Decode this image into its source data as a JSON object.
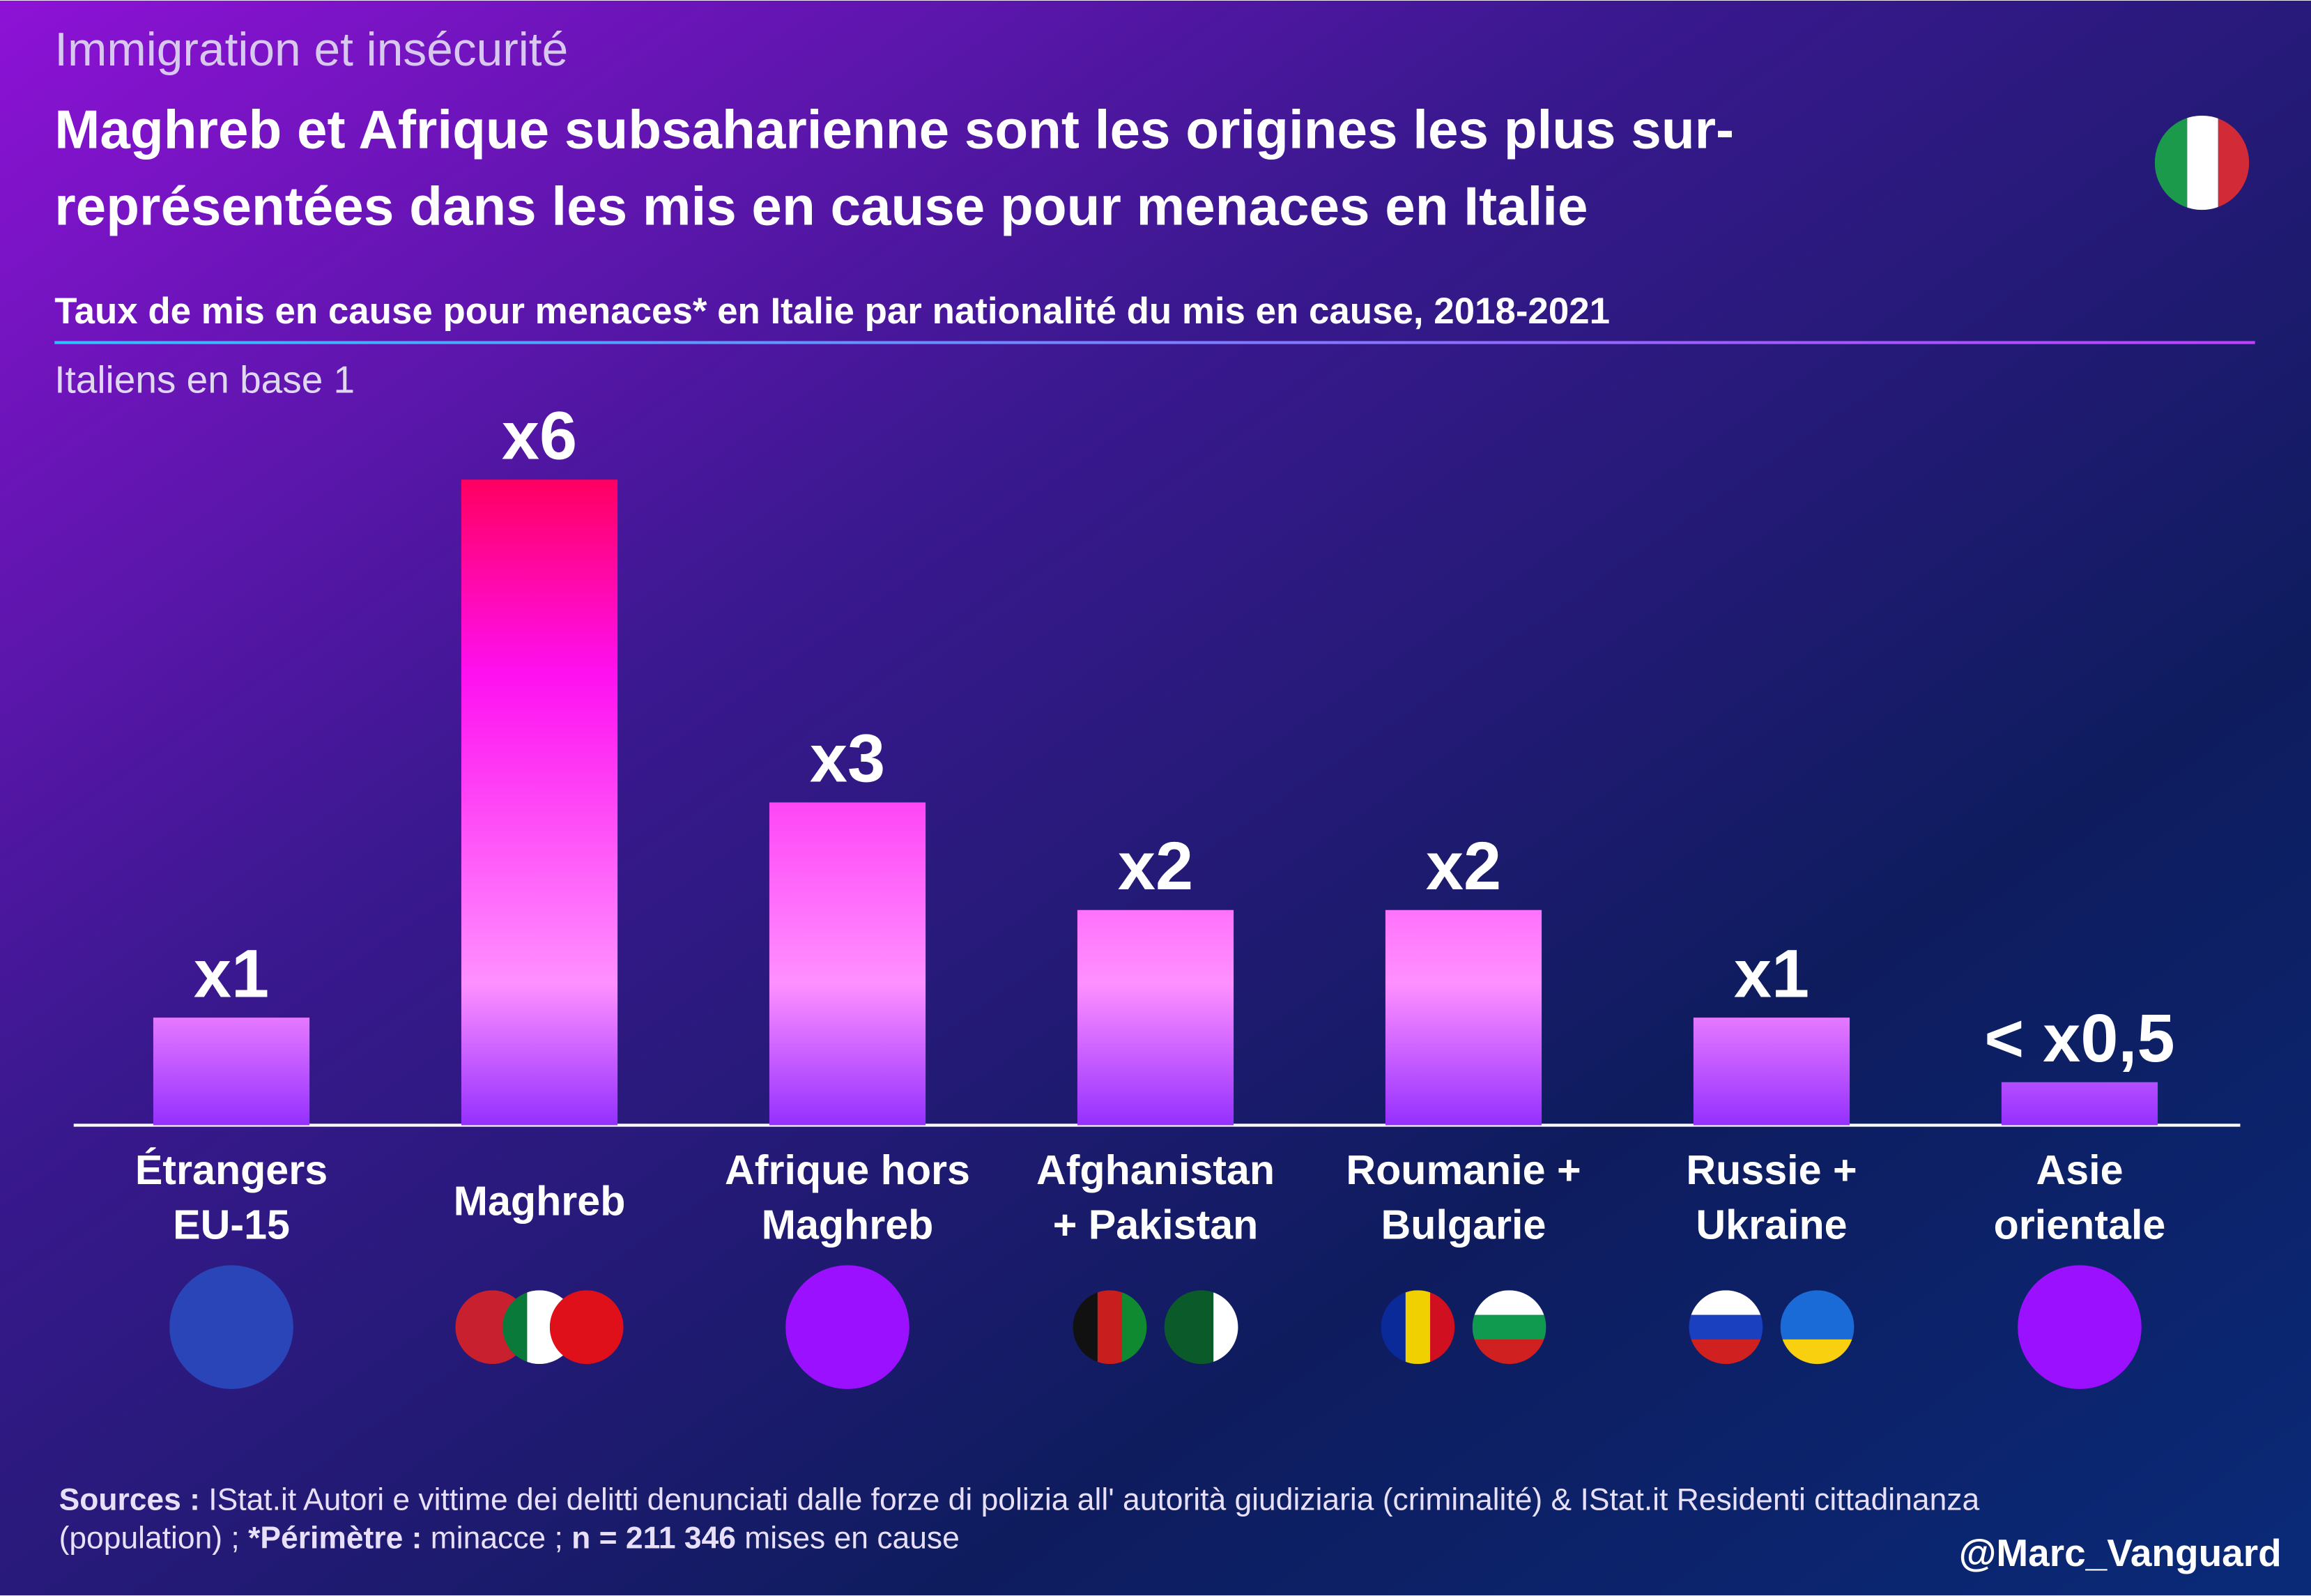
{
  "kicker": "Immigration et insécurité",
  "chart_data": {
    "type": "bar",
    "title": [
      "Maghreb et Afrique subsaharienne sont les origines les plus sur-",
      "représentées dans les mis en cause pour menaces en Italie"
    ],
    "subtitle": "Taux de mis en cause pour menaces* en Italie par nationalité du mis en cause, 2018-2021",
    "note": "Italiens en base 1",
    "categories": [
      [
        "Étrangers",
        "EU-15"
      ],
      [
        "Maghreb"
      ],
      [
        "Afrique hors",
        "Maghreb"
      ],
      [
        "Afghanistan",
        "+ Pakistan"
      ],
      [
        "Roumanie +",
        "Bulgarie"
      ],
      [
        "Russie +",
        "Ukraine"
      ],
      [
        "Asie",
        "orientale"
      ]
    ],
    "values": [
      1,
      6,
      3,
      2,
      2,
      1,
      0.4
    ],
    "value_labels": [
      "x1",
      "x6",
      "x3",
      "x2",
      "x2",
      "x1",
      "< x0,5"
    ]
  },
  "footer": {
    "sources_label": "Sources :",
    "sources": [
      "IStat.it Autori e vittime dei delitti denunciati dalle forze di polizia all' autorità giudiziaria (criminalité) & IStat.it Residenti cittadinanza",
      "(population) ;"
    ],
    "perimeter_label": "*Périmètre :",
    "perimeter": "minacce ;",
    "n_label": "n = 211 346",
    "n_text": "mises en cause",
    "author": "@Marc_Vanguard"
  }
}
